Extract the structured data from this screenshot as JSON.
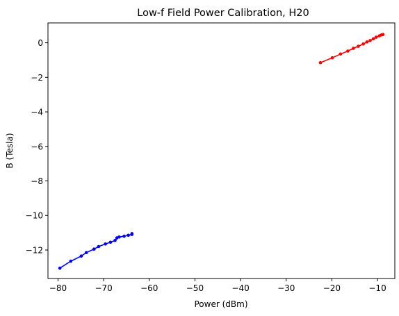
{
  "chart_data": {
    "type": "line",
    "title": "Low-f Field Power Calibration, H20",
    "xlabel": "Power (dBm)",
    "ylabel": "B (Tesla)",
    "xlim": [
      -82.2,
      -6.2
    ],
    "ylim": [
      -13.65,
      1.15
    ],
    "xticks": [
      -80,
      -70,
      -60,
      -50,
      -40,
      -30,
      -20,
      -10
    ],
    "xtick_labels": [
      "−80",
      "−70",
      "−60",
      "−50",
      "−40",
      "−30",
      "−20",
      "−10"
    ],
    "yticks": [
      -12,
      -10,
      -8,
      -6,
      -4,
      -2,
      0
    ],
    "ytick_labels": [
      "−12",
      "−10",
      "−8",
      "−6",
      "−4",
      "−2",
      "0"
    ],
    "grid": false,
    "series": [
      {
        "color": "#0000ff",
        "marker": "dot",
        "x": [
          -79.6,
          -77.2,
          -74.9,
          -73.8,
          -72.1,
          -71.1,
          -69.6,
          -68.5,
          -67.5,
          -67.1,
          -66.6,
          -65.5,
          -64.6,
          -63.8,
          -63.8
        ],
        "y": [
          -13.05,
          -12.65,
          -12.35,
          -12.15,
          -11.95,
          -11.8,
          -11.65,
          -11.55,
          -11.45,
          -11.3,
          -11.25,
          -11.2,
          -11.15,
          -11.1,
          -11.05
        ]
      },
      {
        "color": "#ff0000",
        "marker": "dot",
        "x": [
          -22.5,
          -19.9,
          -18.1,
          -16.5,
          -15.3,
          -14.2,
          -13.1,
          -12.3,
          -11.6,
          -10.9,
          -10.3,
          -9.6,
          -9.1,
          -8.8
        ],
        "y": [
          -1.15,
          -0.87,
          -0.65,
          -0.48,
          -0.32,
          -0.2,
          -0.07,
          0.05,
          0.13,
          0.23,
          0.32,
          0.4,
          0.46,
          0.48
        ]
      }
    ]
  }
}
